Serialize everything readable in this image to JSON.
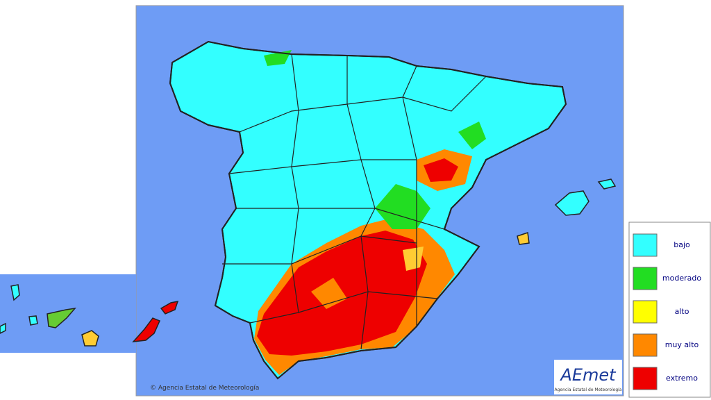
{
  "legend": {
    "items": [
      {
        "label": "bajo",
        "color": "#33ffff"
      },
      {
        "label": "moderado",
        "color": "#22dd22"
      },
      {
        "label": "alto",
        "color": "#ffff00"
      },
      {
        "label": "muy alto",
        "color": "#ff8800"
      },
      {
        "label": "extremo",
        "color": "#ee0000"
      }
    ]
  },
  "copyright": "© Agencia Estatal de Meteorología",
  "logo": {
    "text": "AEmet",
    "subtitle": "Agencia Estatal de Meteorología"
  }
}
